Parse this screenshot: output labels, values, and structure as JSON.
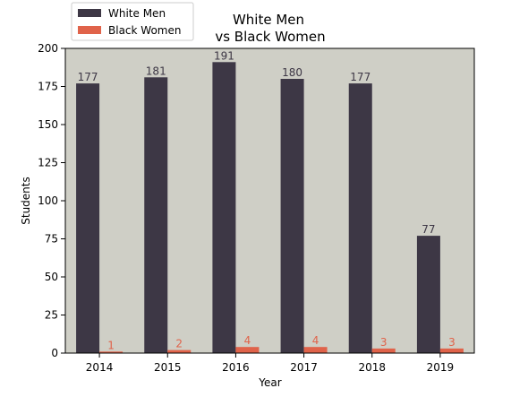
{
  "chart_data": {
    "type": "bar",
    "title_lines": [
      "White Men",
      "vs Black Women"
    ],
    "xlabel": "Year",
    "ylabel": "Students",
    "categories": [
      "2014",
      "2015",
      "2016",
      "2017",
      "2018",
      "2019"
    ],
    "series": [
      {
        "name": "White Men",
        "values": [
          177,
          181,
          191,
          180,
          177,
          77
        ],
        "color": "#3d3745"
      },
      {
        "name": "Black Women",
        "values": [
          1,
          2,
          4,
          4,
          3,
          3
        ],
        "color": "#e0634a"
      }
    ],
    "ylim": [
      0,
      200
    ],
    "yticks": [
      0,
      25,
      50,
      75,
      100,
      125,
      150,
      175,
      200
    ],
    "grid": false,
    "legend_position": "top-left",
    "plot_background": "#cfcfc6"
  }
}
